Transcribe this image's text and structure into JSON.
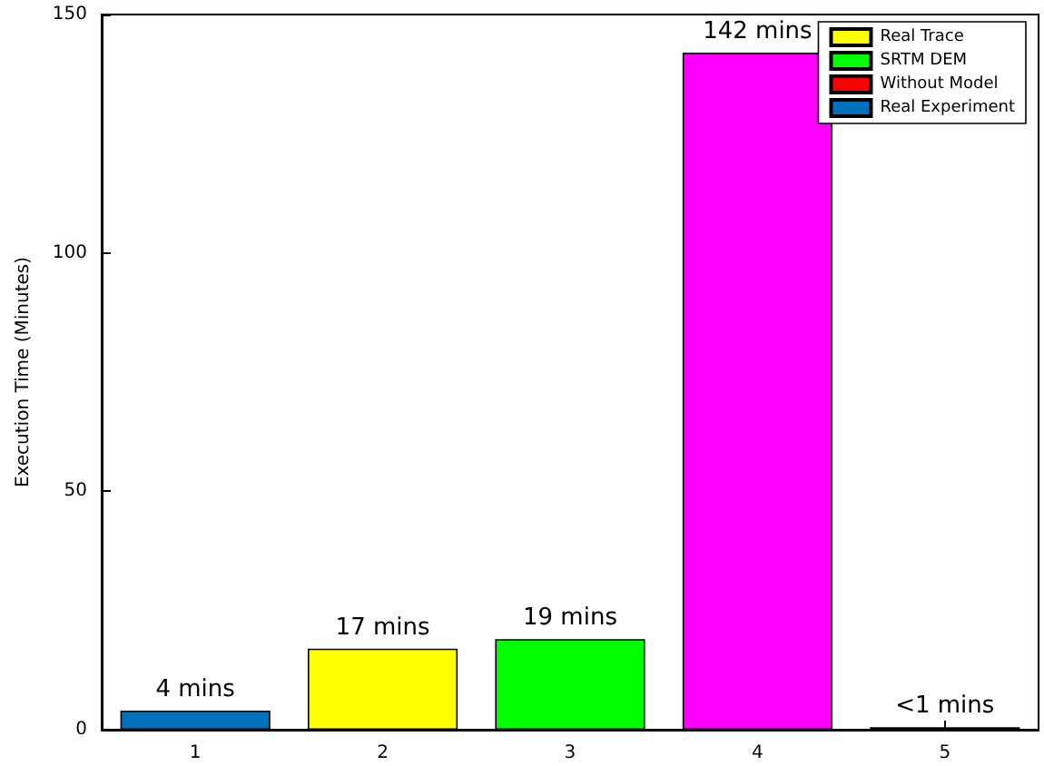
{
  "chart_data": {
    "type": "bar",
    "ylabel": "Execution Time (Minutes)",
    "categories": [
      "1",
      "2",
      "3",
      "4",
      "5"
    ],
    "series": [
      {
        "name": "Real Trace",
        "color": "#ffff00",
        "values": [
          null,
          17,
          null,
          null,
          null
        ],
        "value_labels": [
          null,
          "17 mins",
          null,
          null,
          null
        ]
      },
      {
        "name": "SRTM DEM",
        "color": "#00ff00",
        "values": [
          null,
          null,
          19,
          null,
          null
        ],
        "value_labels": [
          null,
          null,
          "19 mins",
          null,
          null
        ]
      },
      {
        "color": "#ff00ff",
        "values": [
          null,
          null,
          null,
          142,
          null
        ],
        "value_labels": [
          null,
          null,
          null,
          "142 mins",
          null
        ]
      },
      {
        "name": "Without Model",
        "color": "#ff0000",
        "values": [
          null,
          null,
          null,
          null,
          0.5
        ],
        "value_labels": [
          null,
          null,
          null,
          null,
          "<1 mins"
        ]
      },
      {
        "name": "Real Experiment",
        "color": "#0072bd",
        "values": [
          4,
          null,
          null,
          null,
          null
        ],
        "value_labels": [
          "4 mins",
          null,
          null,
          null,
          null
        ]
      }
    ],
    "ylim": [
      0,
      150
    ],
    "yticks": [
      0,
      50,
      100,
      150
    ],
    "grid": false,
    "legend": "top right"
  }
}
